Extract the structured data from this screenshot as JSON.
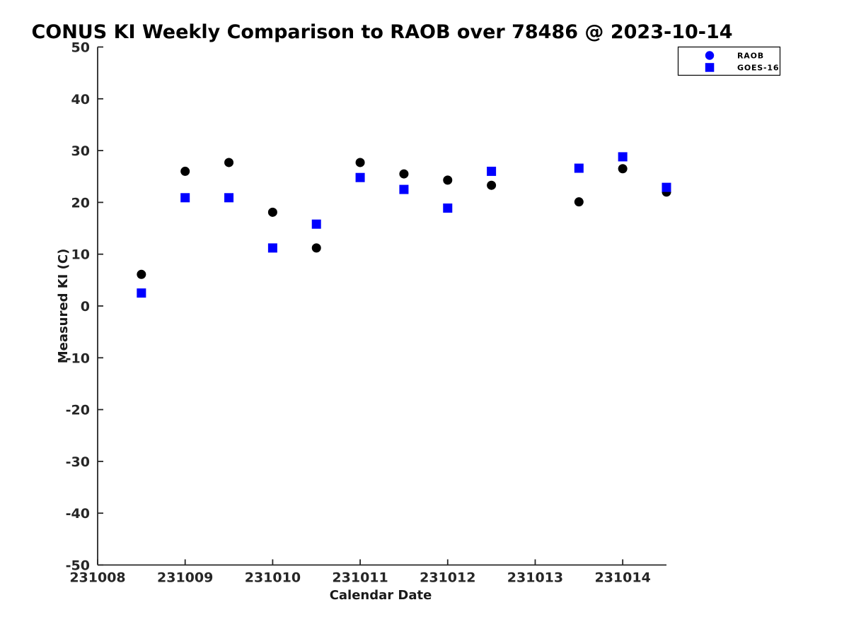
{
  "chart_data": {
    "type": "scatter",
    "title": "CONUS KI Weekly Comparison to RAOB over 78486 @ 2023-10-14",
    "xlabel": "Calendar Date",
    "ylabel": "Measured KI (C)",
    "xlim": [
      231008,
      231014.5
    ],
    "ylim": [
      -50,
      50
    ],
    "x_ticks": [
      231008,
      231009,
      231010,
      231011,
      231012,
      231013,
      231014
    ],
    "y_ticks": [
      -50,
      -40,
      -30,
      -20,
      -10,
      0,
      10,
      20,
      30,
      40,
      50
    ],
    "grid": false,
    "legend_position": "upper-right",
    "x": [
      231008.5,
      231009,
      231009.5,
      231010,
      231010.5,
      231011,
      231011.5,
      231012,
      231012.5,
      231013.5,
      231014,
      231014.5
    ],
    "series": [
      {
        "name": "RAOB",
        "marker": "circle",
        "color": "#000000",
        "legend_marker_color": "#0000ff",
        "values": [
          6.1,
          26.0,
          27.7,
          18.1,
          11.2,
          27.7,
          25.5,
          24.3,
          23.3,
          20.1,
          26.5,
          22.0
        ]
      },
      {
        "name": "GOES-16",
        "marker": "square",
        "color": "#0000ff",
        "legend_marker_color": "#0000ff",
        "values": [
          2.5,
          20.9,
          20.9,
          11.2,
          15.8,
          24.8,
          22.5,
          18.9,
          26.0,
          26.6,
          28.8,
          22.9
        ]
      }
    ],
    "axis_color": "#262626",
    "background_color": "#ffffff"
  }
}
